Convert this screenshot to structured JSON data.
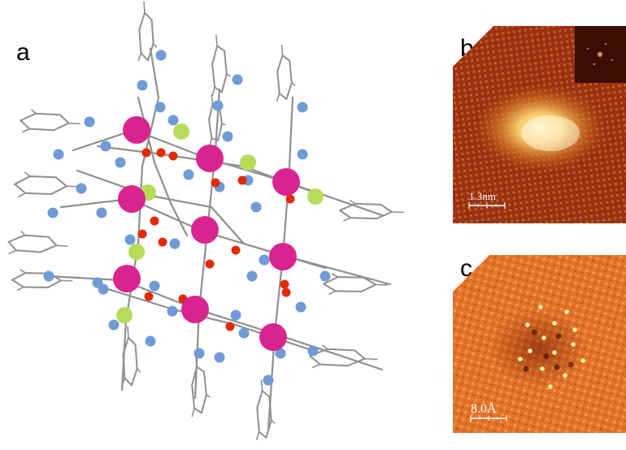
{
  "figure": {
    "panel_a": {
      "label": "a"
    },
    "panel_b": {
      "label": "b",
      "scalebar_text": "1.3nm"
    },
    "panel_c": {
      "label": "c",
      "scalebar_text": "8.0Å"
    }
  },
  "colors": {
    "metal_atom": "#d9248f",
    "oxygen_atom": "#e02a0a",
    "nitrogen_atom": "#6f9bd6",
    "halogen_atom": "#b6dd5a",
    "bond": "#8f8f8f",
    "stm_dark": "#7a1d06",
    "stm_bright": "#fff3b0"
  }
}
